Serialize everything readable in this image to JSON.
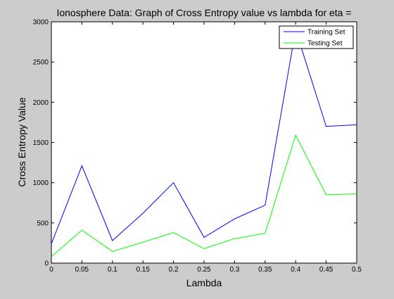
{
  "chart_data": {
    "type": "line",
    "title": "Ionosphere Data: Graph of Cross Entropy value vs lambda for eta =",
    "xlabel": "Lambda",
    "ylabel": "Cross Entropy Value",
    "xlim": [
      0,
      0.5
    ],
    "ylim": [
      0,
      3000
    ],
    "x": [
      0,
      0.05,
      0.1,
      0.15,
      0.2,
      0.25,
      0.3,
      0.35,
      0.4,
      0.45,
      0.5
    ],
    "x_tick_labels": [
      "0",
      "0.05",
      "0.1",
      "0.15",
      "0.2",
      "0.25",
      "0.3",
      "0.35",
      "0.4",
      "0.45",
      "0.5"
    ],
    "y_ticks": [
      0,
      500,
      1000,
      1500,
      2000,
      2500,
      3000
    ],
    "y_tick_labels": [
      "0",
      "500",
      "1000",
      "1500",
      "2000",
      "2500",
      "3000"
    ],
    "grid": false,
    "legend_position": "top-right",
    "series": [
      {
        "name": "Training Set",
        "color": "#0000ff",
        "values": [
          240,
          1210,
          280,
          620,
          1000,
          320,
          550,
          720,
          2900,
          1700,
          1720
        ]
      },
      {
        "name": "Testing Set",
        "color": "#00ff00",
        "values": [
          80,
          410,
          145,
          260,
          380,
          180,
          305,
          370,
          1590,
          850,
          860
        ]
      }
    ]
  }
}
